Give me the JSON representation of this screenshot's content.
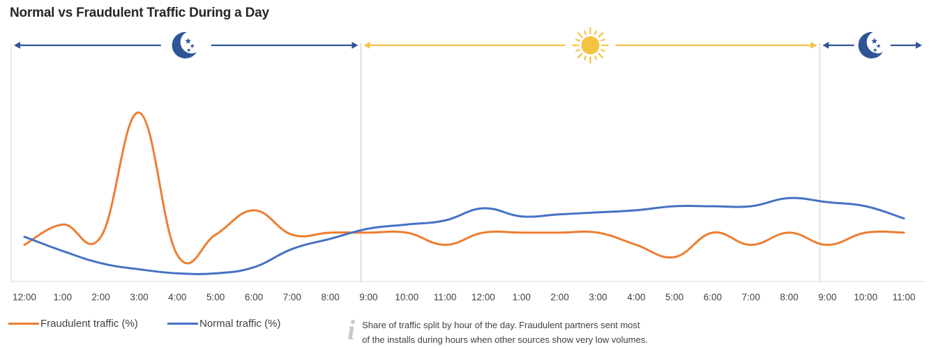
{
  "title": "Normal vs Fraudulent Traffic During a Day",
  "periods": [
    {
      "name": "night",
      "icon": "moon-stars-icon",
      "color": "#2f5597"
    },
    {
      "name": "day",
      "icon": "sun-icon",
      "color": "#f5c342"
    },
    {
      "name": "night",
      "icon": "moon-stars-icon",
      "color": "#2f5597"
    }
  ],
  "legend": {
    "fraud_label": "Fraudulent traffic (%)",
    "normal_label": "Normal traffic (%)"
  },
  "note": {
    "icon": "info-icon",
    "line1": "Share of traffic split by hour of the day. Fraudulent partners sent most",
    "line2": "of the installs during hours when other sources show very low volumes."
  },
  "chart_data": {
    "type": "line",
    "categories": [
      "12:00",
      "1:00",
      "2:00",
      "3:00",
      "4:00",
      "5:00",
      "6:00",
      "7:00",
      "8:00",
      "9:00",
      "10:00",
      "11:00",
      "12:00",
      "1:00",
      "2:00",
      "3:00",
      "4:00",
      "5:00",
      "6:00",
      "7:00",
      "8:00",
      "9:00",
      "10:00",
      "11:00"
    ],
    "ylim": [
      0,
      100
    ],
    "grid": false,
    "legend_position": "bottom-left",
    "dividers_after_index": [
      9,
      21
    ],
    "series": [
      {
        "name": "Fraudulent traffic (%)",
        "color": "#ed7d31",
        "values": [
          18,
          28,
          22,
          83,
          13,
          23,
          35,
          23,
          24,
          24,
          24,
          18,
          24,
          24,
          24,
          24,
          18,
          12,
          24,
          18,
          24,
          18,
          24,
          24
        ]
      },
      {
        "name": "Normal traffic (%)",
        "color": "#4472c4",
        "values": [
          22,
          15,
          9,
          6,
          4,
          4,
          7,
          16,
          21,
          26,
          28,
          30,
          36,
          32,
          33,
          34,
          35,
          37,
          37,
          37,
          41,
          39,
          37,
          31
        ]
      }
    ]
  }
}
